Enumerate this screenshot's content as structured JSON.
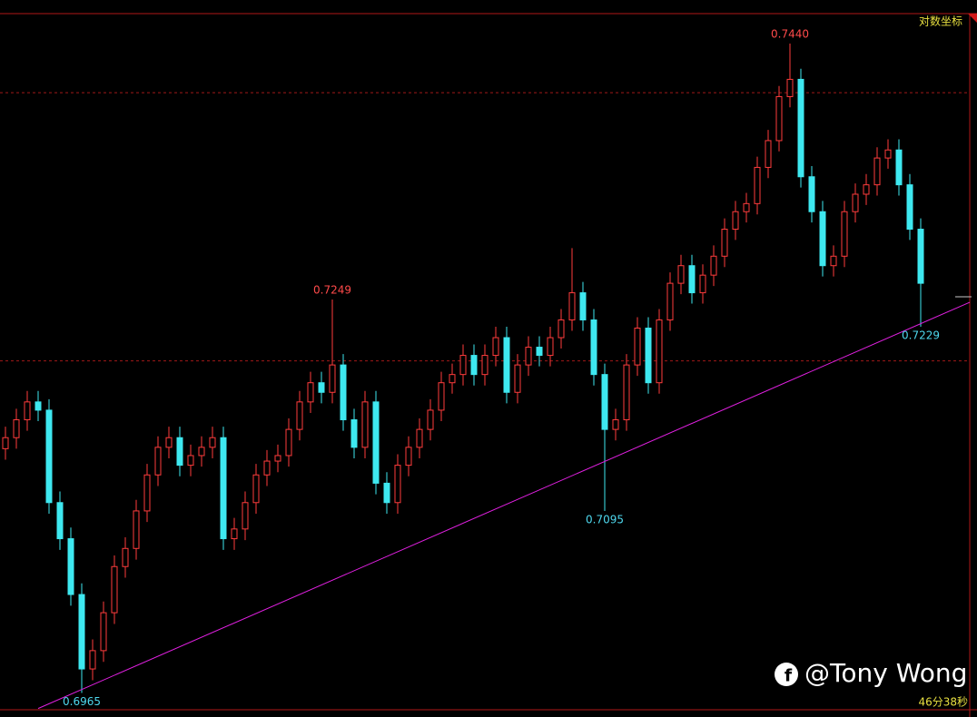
{
  "chart_data": {
    "type": "candlestick",
    "scale_label": "对数坐标",
    "watermark": "@Tony Wong",
    "timer": "46分38秒",
    "log_scale": true,
    "ylim": [
      0.6948,
      0.7473
    ],
    "grid_levels": [
      0.7403,
      0.7204
    ],
    "up_color": "#ff3c3c",
    "down_color": "#3ee8f0",
    "trendline_color": "#e020e0",
    "open": [
      0.714,
      0.7148,
      0.7161,
      0.7174,
      0.7168,
      0.7101,
      0.7075,
      0.7035,
      0.6982,
      0.6995,
      0.7022,
      0.7055,
      0.7068,
      0.7095,
      0.7121,
      0.7141,
      0.7148,
      0.7128,
      0.7135,
      0.7141,
      0.7148,
      0.7075,
      0.7082,
      0.7101,
      0.7121,
      0.7131,
      0.7135,
      0.7154,
      0.7174,
      0.7188,
      0.7181,
      0.7201,
      0.7161,
      0.7141,
      0.7174,
      0.7115,
      0.7101,
      0.7128,
      0.7141,
      0.7154,
      0.7168,
      0.7188,
      0.7194,
      0.7208,
      0.7194,
      0.7208,
      0.7221,
      0.7181,
      0.7201,
      0.7214,
      0.7208,
      0.7221,
      0.7234,
      0.7254,
      0.7234,
      0.7194,
      0.7154,
      0.7161,
      0.7201,
      0.7228,
      0.7188,
      0.7234,
      0.7261,
      0.7274,
      0.7254,
      0.7267,
      0.7281,
      0.7301,
      0.7314,
      0.732,
      0.7347,
      0.7367,
      0.74,
      0.7413,
      0.734,
      0.7314,
      0.7274,
      0.7281,
      0.7314,
      0.7327,
      0.7334,
      0.7354,
      0.736,
      0.7334,
      0.7301
    ],
    "close": [
      0.7148,
      0.7161,
      0.7174,
      0.7168,
      0.7101,
      0.7075,
      0.7035,
      0.6982,
      0.6995,
      0.7022,
      0.7055,
      0.7068,
      0.7095,
      0.7121,
      0.7141,
      0.7148,
      0.7128,
      0.7135,
      0.7141,
      0.7148,
      0.7075,
      0.7082,
      0.7101,
      0.7121,
      0.7131,
      0.7135,
      0.7154,
      0.7174,
      0.7188,
      0.7181,
      0.7201,
      0.7161,
      0.7141,
      0.7174,
      0.7115,
      0.7101,
      0.7128,
      0.7141,
      0.7154,
      0.7168,
      0.7188,
      0.7194,
      0.7208,
      0.7194,
      0.7208,
      0.7221,
      0.7181,
      0.7201,
      0.7214,
      0.7208,
      0.7221,
      0.7234,
      0.7254,
      0.7234,
      0.7194,
      0.7154,
      0.7161,
      0.7201,
      0.7228,
      0.7188,
      0.7234,
      0.7261,
      0.7274,
      0.7254,
      0.7267,
      0.7281,
      0.7301,
      0.7314,
      0.732,
      0.7347,
      0.7367,
      0.74,
      0.7413,
      0.734,
      0.7314,
      0.7274,
      0.7281,
      0.7314,
      0.7327,
      0.7334,
      0.7354,
      0.736,
      0.7334,
      0.7301,
      0.7261
    ],
    "high": [
      0.7156,
      0.7169,
      0.7182,
      0.7182,
      0.7176,
      0.7109,
      0.7083,
      0.7043,
      0.7003,
      0.703,
      0.7063,
      0.7076,
      0.7103,
      0.7129,
      0.7149,
      0.7156,
      0.7156,
      0.7143,
      0.7149,
      0.7156,
      0.7156,
      0.709,
      0.7109,
      0.7129,
      0.7139,
      0.7143,
      0.7162,
      0.7182,
      0.7196,
      0.7196,
      0.7249,
      0.7209,
      0.7169,
      0.7182,
      0.7182,
      0.7123,
      0.7136,
      0.7149,
      0.7162,
      0.7176,
      0.7196,
      0.7202,
      0.7216,
      0.7216,
      0.7216,
      0.7229,
      0.7229,
      0.7209,
      0.7222,
      0.7222,
      0.7229,
      0.7242,
      0.7287,
      0.7262,
      0.7242,
      0.7202,
      0.7169,
      0.7209,
      0.7236,
      0.7236,
      0.7242,
      0.7269,
      0.7282,
      0.7282,
      0.7275,
      0.7289,
      0.7309,
      0.7322,
      0.7328,
      0.7355,
      0.7375,
      0.7408,
      0.744,
      0.7421,
      0.7348,
      0.7322,
      0.7289,
      0.7322,
      0.7335,
      0.7342,
      0.7362,
      0.7368,
      0.7368,
      0.7342,
      0.7309
    ],
    "low": [
      0.7132,
      0.714,
      0.7153,
      0.716,
      0.7093,
      0.7067,
      0.7027,
      0.6965,
      0.6974,
      0.6987,
      0.7014,
      0.7047,
      0.706,
      0.7087,
      0.7113,
      0.7133,
      0.712,
      0.712,
      0.7127,
      0.7133,
      0.7067,
      0.7067,
      0.7074,
      0.7093,
      0.7113,
      0.7123,
      0.7127,
      0.7146,
      0.7166,
      0.7173,
      0.7173,
      0.7153,
      0.7133,
      0.7133,
      0.7107,
      0.7093,
      0.7093,
      0.712,
      0.7133,
      0.7146,
      0.716,
      0.718,
      0.7186,
      0.7186,
      0.7186,
      0.72,
      0.7173,
      0.7173,
      0.7193,
      0.72,
      0.72,
      0.7213,
      0.7226,
      0.7226,
      0.7186,
      0.7095,
      0.7146,
      0.7153,
      0.7193,
      0.718,
      0.718,
      0.7226,
      0.7253,
      0.7246,
      0.7246,
      0.7259,
      0.7273,
      0.7293,
      0.7306,
      0.7312,
      0.7339,
      0.7359,
      0.7392,
      0.7332,
      0.7306,
      0.7266,
      0.7266,
      0.7273,
      0.7306,
      0.7319,
      0.7326,
      0.7346,
      0.7326,
      0.7293,
      0.7229
    ],
    "annotations": [
      {
        "text": "0.7440",
        "index": 72,
        "value": 0.744,
        "color": "#ff4a4a"
      },
      {
        "text": "0.7249",
        "index": 30,
        "value": 0.7249,
        "color": "#ff4a4a"
      },
      {
        "text": "0.7095",
        "index": 55,
        "value": 0.7095,
        "color": "#4ed8ee"
      },
      {
        "text": "0.7229",
        "index": 84,
        "value": 0.7229,
        "color": "#4ed8ee"
      },
      {
        "text": "0.6965",
        "index": 7,
        "value": 0.6965,
        "color": "#4ed8ee"
      }
    ],
    "trendline": {
      "x": [
        3,
        88.5
      ],
      "y": [
        0.6954,
        0.7247
      ]
    }
  }
}
